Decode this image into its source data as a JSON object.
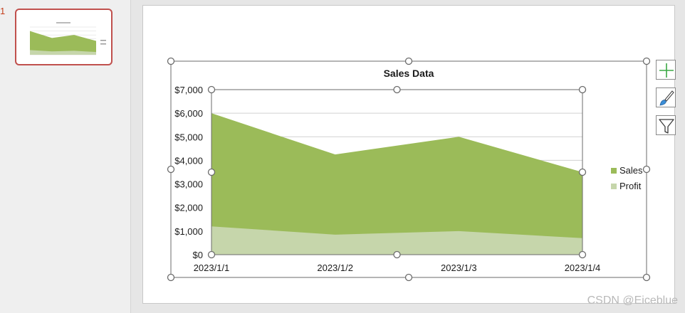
{
  "thumbnail_pane": {
    "slide_number": "1"
  },
  "tools": {
    "elements_icon": "plus-icon",
    "styles_icon": "paintbrush-icon",
    "filter_icon": "funnel-icon"
  },
  "colors": {
    "sales": "#9bbb59",
    "profit": "#c6d6ab",
    "selection": "#6b6b6b",
    "thumb_border": "#c0504d"
  },
  "chart_data": {
    "type": "area",
    "title": "Sales Data",
    "categories": [
      "2023/1/1",
      "2023/1/2",
      "2023/1/3",
      "2023/1/4"
    ],
    "series": [
      {
        "name": "Sales",
        "values": [
          6000,
          4250,
          5000,
          3500
        ]
      },
      {
        "name": "Profit",
        "values": [
          1200,
          850,
          1000,
          700
        ]
      }
    ],
    "ylim": [
      0,
      7000
    ],
    "yticks": [
      0,
      1000,
      2000,
      3000,
      4000,
      5000,
      6000,
      7000
    ],
    "ytick_labels": [
      "$0",
      "$1,000",
      "$2,000",
      "$3,000",
      "$4,000",
      "$5,000",
      "$6,000",
      "$7,000"
    ],
    "grid": true,
    "legend": "right",
    "xlabel": "",
    "ylabel": ""
  },
  "watermark": "CSDN @Eiceblue"
}
